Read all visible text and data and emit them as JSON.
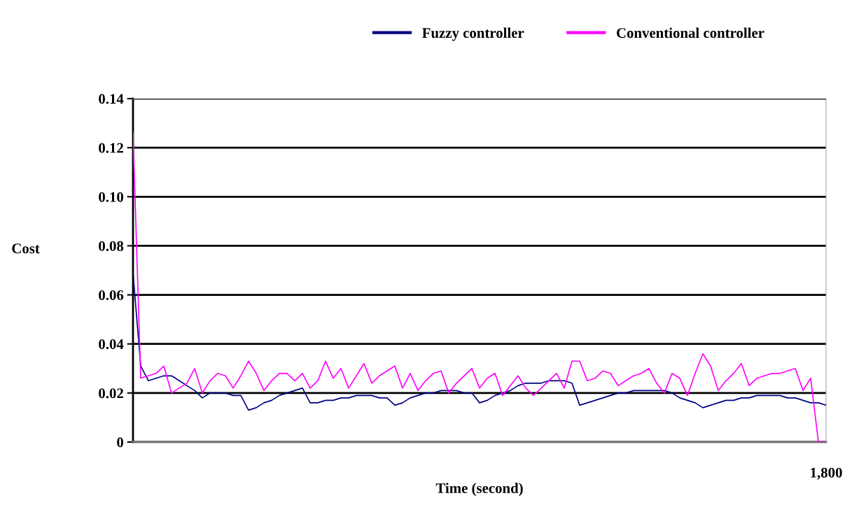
{
  "chart_data": {
    "type": "line",
    "xlabel": "Time (second)",
    "ylabel": "Cost",
    "categories": [
      null,
      null,
      null,
      null,
      null,
      null,
      null,
      null,
      null,
      null,
      null,
      null,
      null,
      null,
      null,
      null,
      null,
      null,
      null,
      null,
      null,
      null,
      null,
      null,
      null,
      null,
      null,
      null,
      null,
      null,
      null,
      null,
      null,
      null,
      null,
      null,
      null,
      null,
      null,
      null,
      null,
      null,
      null,
      null,
      null,
      null,
      null,
      null,
      null,
      null,
      null,
      null,
      null,
      null,
      null,
      null,
      null,
      null,
      null,
      null,
      null,
      null,
      null,
      null,
      null,
      null,
      null,
      null,
      null,
      null,
      null,
      null,
      null,
      null,
      null,
      null,
      null,
      null,
      null,
      null,
      null,
      null,
      null,
      null,
      null,
      null,
      null,
      null,
      null,
      null,
      null
    ],
    "annotations": [
      "1,800"
    ],
    "ylim": [
      0,
      0.14
    ],
    "yticks": [
      {
        "value": 0,
        "label": "0"
      },
      {
        "value": 0.02,
        "label": "0.02"
      },
      {
        "value": 0.04,
        "label": "0.04"
      },
      {
        "value": 0.06,
        "label": "0.06"
      },
      {
        "value": 0.08,
        "label": "0.08"
      },
      {
        "value": 0.1,
        "label": "0.10"
      },
      {
        "value": 0.12,
        "label": "0.12"
      },
      {
        "value": 0.14,
        "label": "0.14"
      }
    ],
    "grid": "y",
    "legend": "top right",
    "marker": "none",
    "line_style": "solid",
    "series": [
      {
        "name": "Fuzzy controller",
        "color": "#000080",
        "values": [
          0.069,
          0.031,
          0.025,
          0.026,
          0.027,
          0.027,
          0.025,
          0.023,
          0.021,
          0.018,
          0.02,
          0.02,
          0.02,
          0.019,
          0.019,
          0.013,
          0.014,
          0.016,
          0.017,
          0.019,
          0.02,
          0.021,
          0.022,
          0.016,
          0.016,
          0.017,
          0.017,
          0.018,
          0.018,
          0.019,
          0.019,
          0.019,
          0.018,
          0.018,
          0.015,
          0.016,
          0.018,
          0.019,
          0.02,
          0.02,
          0.021,
          0.021,
          0.021,
          0.02,
          0.02,
          0.016,
          0.017,
          0.019,
          0.02,
          0.021,
          0.023,
          0.024,
          0.024,
          0.024,
          0.025,
          0.025,
          0.025,
          0.024,
          0.015,
          0.016,
          0.017,
          0.018,
          0.019,
          0.02,
          0.02,
          0.021,
          0.021,
          0.021,
          0.021,
          0.021,
          0.02,
          0.018,
          0.017,
          0.016,
          0.014,
          0.015,
          0.016,
          0.017,
          0.017,
          0.018,
          0.018,
          0.019,
          0.019,
          0.019,
          0.019,
          0.018,
          0.018,
          0.017,
          0.016,
          0.016,
          0.015
        ]
      },
      {
        "name": "Conventional controller",
        "color": "#ff00ff",
        "values": [
          0.126,
          0.026,
          0.027,
          0.028,
          0.031,
          0.02,
          0.022,
          0.024,
          0.03,
          0.02,
          0.025,
          0.028,
          0.027,
          0.022,
          0.027,
          0.033,
          0.028,
          0.021,
          0.025,
          0.028,
          0.028,
          0.025,
          0.028,
          0.022,
          0.025,
          0.033,
          0.026,
          0.03,
          0.022,
          0.027,
          0.032,
          0.024,
          0.027,
          0.029,
          0.031,
          0.022,
          0.028,
          0.021,
          0.025,
          0.028,
          0.029,
          0.02,
          0.024,
          0.027,
          0.03,
          0.022,
          0.026,
          0.028,
          0.019,
          0.023,
          0.027,
          0.022,
          0.019,
          0.022,
          0.025,
          0.028,
          0.022,
          0.033,
          0.033,
          0.025,
          0.026,
          0.029,
          0.028,
          0.023,
          0.025,
          0.027,
          0.028,
          0.03,
          0.024,
          0.02,
          0.028,
          0.026,
          0.019,
          0.028,
          0.036,
          0.031,
          0.021,
          0.025,
          0.028,
          0.032,
          0.023,
          0.026,
          0.027,
          0.028,
          0.028,
          0.029,
          0.03,
          0.021,
          0.026,
          0,
          0
        ]
      }
    ]
  }
}
